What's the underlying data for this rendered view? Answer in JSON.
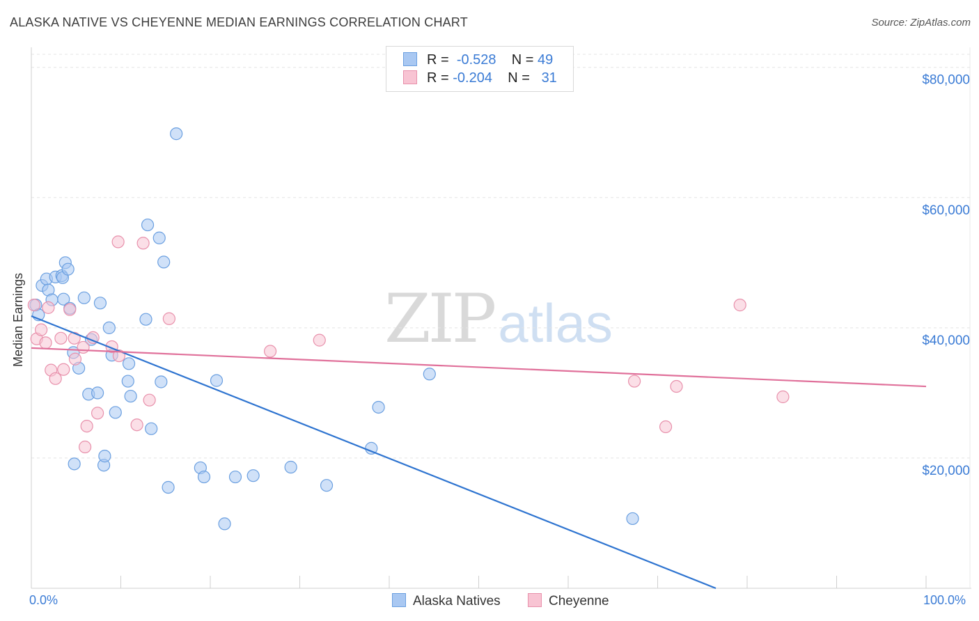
{
  "title": "ALASKA NATIVE VS CHEYENNE MEDIAN EARNINGS CORRELATION CHART",
  "source": "Source: ZipAtlas.com",
  "watermark": {
    "zip": "ZIP",
    "atlas": "atlas"
  },
  "legend": {
    "rows": [
      {
        "r_label": "R =",
        "r_value": "-0.528",
        "n_label": "N =",
        "n_value": "49",
        "color": "#a9c8f2",
        "border": "#6a9fe0"
      },
      {
        "r_label": "R =",
        "r_value": "-0.204",
        "n_label": "N =",
        "n_value": "31",
        "color": "#f8c4d3",
        "border": "#e890ab"
      }
    ]
  },
  "bottom_legend": [
    {
      "label": "Alaska Natives",
      "color": "#a9c8f2",
      "border": "#6a9fe0"
    },
    {
      "label": "Cheyenne",
      "color": "#f8c4d3",
      "border": "#e890ab"
    }
  ],
  "x_labels": {
    "left": "0.0%",
    "right": "100.0%"
  },
  "chart_data": {
    "type": "scatter",
    "title": "ALASKA NATIVE VS CHEYENNE MEDIAN EARNINGS CORRELATION CHART",
    "xlabel": "",
    "ylabel": "Median Earnings",
    "xlim": [
      0,
      100
    ],
    "ylim": [
      0,
      82000
    ],
    "y_ticks": [
      20000,
      40000,
      60000,
      80000
    ],
    "y_tick_labels": [
      "$20,000",
      "$40,000",
      "$60,000",
      "$80,000"
    ],
    "grid": true,
    "series": [
      {
        "name": "Alaska Natives",
        "color": "#6a9fe0",
        "fill": "#a9c8f2",
        "line_color": "#2e74d0",
        "trend": {
          "x": [
            0,
            76.5
          ],
          "y": [
            41800,
            0
          ]
        },
        "points": [
          {
            "x": 0.5,
            "y": 43500
          },
          {
            "x": 0.8,
            "y": 42000
          },
          {
            "x": 1.2,
            "y": 46500
          },
          {
            "x": 1.7,
            "y": 47500
          },
          {
            "x": 1.9,
            "y": 45800
          },
          {
            "x": 2.3,
            "y": 44300
          },
          {
            "x": 2.7,
            "y": 47800
          },
          {
            "x": 3.4,
            "y": 48000
          },
          {
            "x": 3.5,
            "y": 47700
          },
          {
            "x": 3.6,
            "y": 44400
          },
          {
            "x": 3.8,
            "y": 50000
          },
          {
            "x": 4.1,
            "y": 49000
          },
          {
            "x": 4.3,
            "y": 43000
          },
          {
            "x": 4.7,
            "y": 36200
          },
          {
            "x": 4.8,
            "y": 19100
          },
          {
            "x": 5.3,
            "y": 33800
          },
          {
            "x": 5.9,
            "y": 44600
          },
          {
            "x": 6.4,
            "y": 29800
          },
          {
            "x": 6.7,
            "y": 38200
          },
          {
            "x": 7.4,
            "y": 30000
          },
          {
            "x": 7.7,
            "y": 43800
          },
          {
            "x": 8.1,
            "y": 18900
          },
          {
            "x": 8.2,
            "y": 20300
          },
          {
            "x": 8.7,
            "y": 40000
          },
          {
            "x": 9.0,
            "y": 35800
          },
          {
            "x": 9.4,
            "y": 27000
          },
          {
            "x": 10.8,
            "y": 31800
          },
          {
            "x": 10.9,
            "y": 34500
          },
          {
            "x": 11.1,
            "y": 29500
          },
          {
            "x": 12.8,
            "y": 41300
          },
          {
            "x": 13.0,
            "y": 55800
          },
          {
            "x": 13.4,
            "y": 24500
          },
          {
            "x": 14.3,
            "y": 53800
          },
          {
            "x": 14.5,
            "y": 31700
          },
          {
            "x": 14.8,
            "y": 50100
          },
          {
            "x": 15.3,
            "y": 15500
          },
          {
            "x": 16.2,
            "y": 69800
          },
          {
            "x": 18.9,
            "y": 18500
          },
          {
            "x": 19.3,
            "y": 17100
          },
          {
            "x": 20.7,
            "y": 31900
          },
          {
            "x": 21.6,
            "y": 9900
          },
          {
            "x": 22.8,
            "y": 17100
          },
          {
            "x": 24.8,
            "y": 17300
          },
          {
            "x": 29.0,
            "y": 18600
          },
          {
            "x": 33.0,
            "y": 15800
          },
          {
            "x": 38.0,
            "y": 21500
          },
          {
            "x": 38.8,
            "y": 27800
          },
          {
            "x": 44.5,
            "y": 32900
          },
          {
            "x": 67.2,
            "y": 10700
          }
        ]
      },
      {
        "name": "Cheyenne",
        "color": "#e890ab",
        "fill": "#f8c4d3",
        "line_color": "#e0709a",
        "trend": {
          "x": [
            0,
            100
          ],
          "y": [
            36900,
            31000
          ]
        },
        "points": [
          {
            "x": 0.3,
            "y": 43500
          },
          {
            "x": 0.6,
            "y": 38300
          },
          {
            "x": 1.1,
            "y": 39700
          },
          {
            "x": 1.6,
            "y": 37700
          },
          {
            "x": 1.9,
            "y": 43100
          },
          {
            "x": 2.2,
            "y": 33500
          },
          {
            "x": 2.7,
            "y": 32200
          },
          {
            "x": 3.3,
            "y": 38400
          },
          {
            "x": 3.6,
            "y": 33600
          },
          {
            "x": 4.3,
            "y": 42800
          },
          {
            "x": 4.8,
            "y": 38400
          },
          {
            "x": 4.9,
            "y": 35200
          },
          {
            "x": 5.8,
            "y": 37000
          },
          {
            "x": 6.0,
            "y": 21700
          },
          {
            "x": 6.2,
            "y": 24900
          },
          {
            "x": 6.9,
            "y": 38500
          },
          {
            "x": 7.4,
            "y": 26900
          },
          {
            "x": 9.7,
            "y": 53200
          },
          {
            "x": 9.0,
            "y": 37100
          },
          {
            "x": 9.8,
            "y": 35700
          },
          {
            "x": 11.8,
            "y": 25100
          },
          {
            "x": 12.5,
            "y": 53000
          },
          {
            "x": 13.2,
            "y": 28900
          },
          {
            "x": 15.4,
            "y": 41400
          },
          {
            "x": 26.7,
            "y": 36400
          },
          {
            "x": 32.2,
            "y": 38100
          },
          {
            "x": 67.4,
            "y": 31800
          },
          {
            "x": 70.9,
            "y": 24800
          },
          {
            "x": 72.1,
            "y": 31000
          },
          {
            "x": 79.2,
            "y": 43500
          },
          {
            "x": 84.0,
            "y": 29400
          }
        ]
      }
    ]
  }
}
